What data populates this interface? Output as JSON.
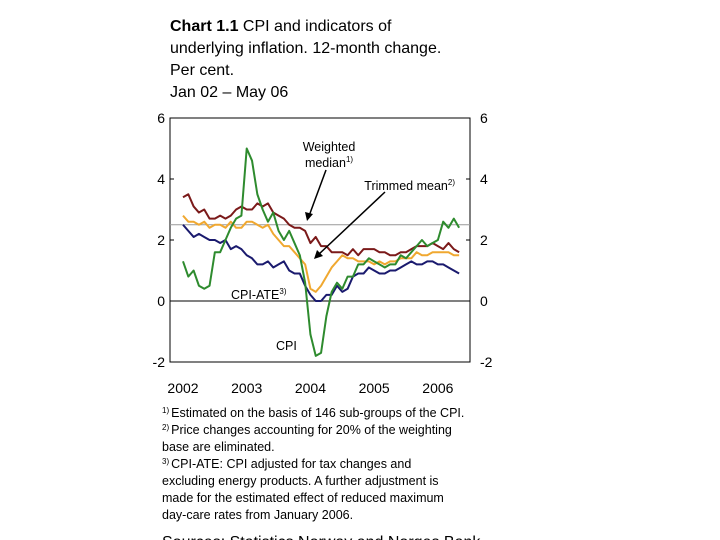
{
  "chart_data": {
    "type": "line",
    "title_prefix": "Chart 1.1",
    "title_lines": [
      "CPI and indicators of",
      "underlying inflation. 12-month change.",
      "Per cent.",
      "Jan 02 – May 06"
    ],
    "categories": [
      "2002",
      null,
      null,
      null,
      null,
      null,
      null,
      null,
      null,
      null,
      null,
      null,
      "2003",
      null,
      null,
      null,
      null,
      null,
      null,
      null,
      null,
      null,
      null,
      null,
      "2004",
      null,
      null,
      null,
      null,
      null,
      null,
      null,
      null,
      null,
      null,
      null,
      "2005",
      null,
      null,
      null,
      null,
      null,
      null,
      null,
      null,
      null,
      null,
      null,
      "2006",
      null,
      null,
      null,
      null
    ],
    "series": [
      {
        "name": "CPI",
        "color": "#2e8b2e",
        "values": [
          1.3,
          0.8,
          1.0,
          0.5,
          0.4,
          0.5,
          1.6,
          1.6,
          2.0,
          2.4,
          2.7,
          2.8,
          5.0,
          4.6,
          3.5,
          3.0,
          2.6,
          2.9,
          2.3,
          2.0,
          2.3,
          1.9,
          1.5,
          0.6,
          -1.1,
          -1.8,
          -1.7,
          -0.5,
          0.3,
          0.6,
          0.4,
          0.8,
          0.8,
          1.2,
          1.2,
          1.4,
          1.3,
          1.2,
          1.1,
          1.2,
          1.2,
          1.5,
          1.4,
          1.6,
          1.8,
          2.0,
          1.8,
          1.9,
          2.0,
          2.6,
          2.4,
          2.7,
          2.4
        ]
      },
      {
        "name": "Weighted median",
        "note": "1)",
        "color": "#7b1a1a",
        "values": [
          3.4,
          3.5,
          3.1,
          2.9,
          3.0,
          2.7,
          2.7,
          2.8,
          2.7,
          2.8,
          3.0,
          3.1,
          3.0,
          3.0,
          3.2,
          3.1,
          3.2,
          2.9,
          2.8,
          2.7,
          2.5,
          2.4,
          2.4,
          2.3,
          1.9,
          2.1,
          1.8,
          1.8,
          1.6,
          1.6,
          1.6,
          1.5,
          1.7,
          1.5,
          1.7,
          1.7,
          1.7,
          1.6,
          1.6,
          1.5,
          1.5,
          1.6,
          1.6,
          1.7,
          1.8,
          1.8,
          1.8,
          1.9,
          1.8,
          1.7,
          1.9,
          1.7,
          1.6
        ]
      },
      {
        "name": "Trimmed mean",
        "note": "2)",
        "color": "#f0a830",
        "values": [
          2.8,
          2.6,
          2.6,
          2.5,
          2.6,
          2.4,
          2.5,
          2.5,
          2.4,
          2.6,
          2.4,
          2.4,
          2.6,
          2.6,
          2.5,
          2.4,
          2.5,
          2.2,
          2.0,
          1.8,
          1.8,
          1.6,
          1.4,
          1.2,
          0.4,
          0.3,
          0.5,
          0.8,
          1.1,
          1.3,
          1.5,
          1.4,
          1.4,
          1.3,
          1.3,
          1.3,
          1.2,
          1.3,
          1.2,
          1.3,
          1.3,
          1.4,
          1.4,
          1.4,
          1.6,
          1.5,
          1.5,
          1.6,
          1.6,
          1.6,
          1.6,
          1.5,
          1.5
        ]
      },
      {
        "name": "CPI-ATE",
        "note": "3)",
        "color": "#1a1a6e",
        "values": [
          2.5,
          2.3,
          2.1,
          2.2,
          2.1,
          2.0,
          2.0,
          1.9,
          2.0,
          1.7,
          1.8,
          1.7,
          1.5,
          1.4,
          1.2,
          1.2,
          1.3,
          1.1,
          1.2,
          1.3,
          1.0,
          0.9,
          0.9,
          0.5,
          0.2,
          0.0,
          0.0,
          0.2,
          0.2,
          0.5,
          0.3,
          0.4,
          0.8,
          0.9,
          0.9,
          1.1,
          1.0,
          0.9,
          0.9,
          1.0,
          1.0,
          1.1,
          1.2,
          1.3,
          1.2,
          1.2,
          1.3,
          1.3,
          1.2,
          1.2,
          1.1,
          1.0,
          0.9
        ]
      }
    ],
    "ylim": [
      -2,
      6
    ],
    "yticks": [
      6,
      4,
      2,
      0,
      -2
    ],
    "y2lim": [
      -2,
      6
    ],
    "y2ticks": [
      6,
      4,
      2,
      0,
      -2
    ],
    "reference_line": 2.5,
    "footnotes": [
      {
        "mark": "1)",
        "lines": [
          "Estimated on the basis of 146 sub-groups of the CPI."
        ]
      },
      {
        "mark": "2)",
        "lines": [
          "Price changes accounting for 20% of the weighting",
          "base are eliminated."
        ]
      },
      {
        "mark": "3)",
        "lines": [
          "CPI-ATE: CPI adjusted for tax changes and",
          "excluding energy products. A further adjustment is",
          "made for the estimated effect of reduced maximum",
          "day-care rates from January 2006."
        ]
      }
    ],
    "source": "Sources: Statistics Norway and Norges Bank"
  }
}
